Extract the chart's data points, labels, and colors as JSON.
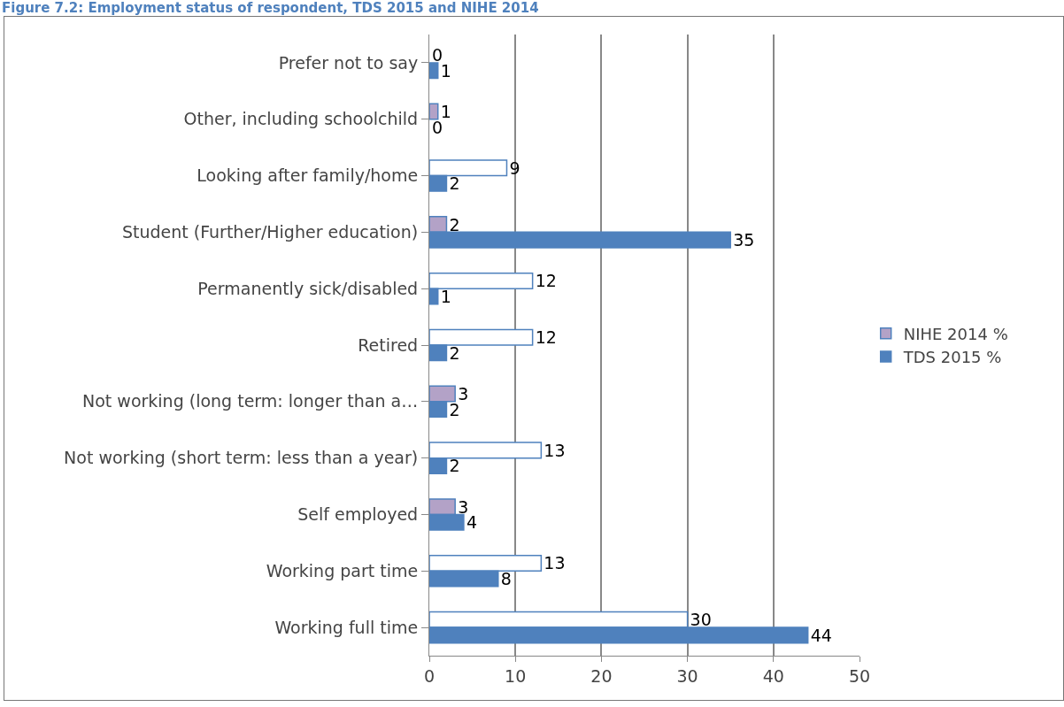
{
  "chart_data": {
    "type": "bar",
    "orientation": "horizontal",
    "title": "Figure 7.2: Employment status of respondent, TDS 2015 and NIHE 2014",
    "categories": [
      "Prefer not to say",
      "Other, including schoolchild",
      "Looking after family/home",
      "Student (Further/Higher education)",
      "Permanently sick/disabled",
      "Retired",
      "Not working (long term: longer than a…",
      "Not working (short term: less than a year)",
      "Self employed",
      "Working part time",
      "Working full time"
    ],
    "series": [
      {
        "name": "NIHE 2014 %",
        "color": "#b3a2c7",
        "colors": [
          "#b3a2c7",
          "#b3a2c7",
          "#ffffff",
          "#b3a2c7",
          "#ffffff",
          "#ffffff",
          "#b3a2c7",
          "#ffffff",
          "#b3a2c7",
          "#ffffff",
          "#ffffff"
        ],
        "values": [
          0,
          1,
          9,
          2,
          12,
          12,
          3,
          13,
          3,
          13,
          30
        ]
      },
      {
        "name": "TDS 2015 %",
        "color": "#4f81bd",
        "values": [
          1,
          0,
          2,
          35,
          1,
          2,
          2,
          2,
          4,
          8,
          44
        ]
      }
    ],
    "xlim": [
      0,
      50
    ],
    "xticks": [
      0,
      10,
      20,
      30,
      40,
      50
    ],
    "grid": "x",
    "legend": "right",
    "data_labels": true
  }
}
